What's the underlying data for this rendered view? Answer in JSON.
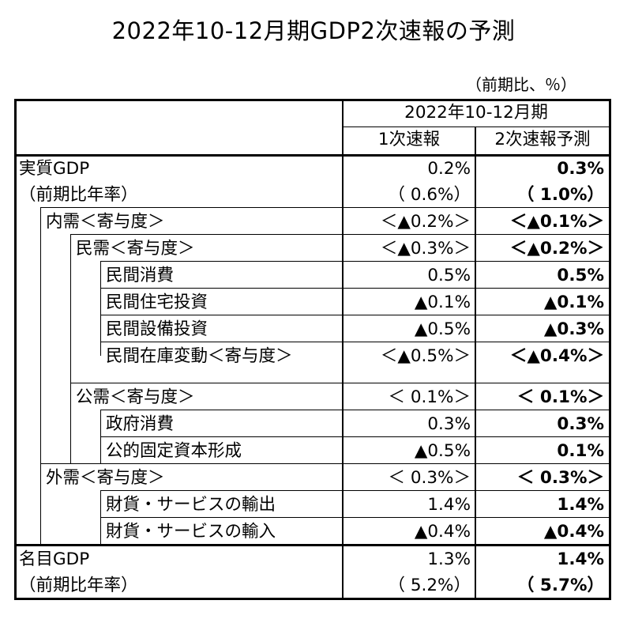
{
  "title": "2022年10-12月期GDP2次速報の予測",
  "unit_note": "（前期比、％）",
  "header": {
    "period": "2022年10-12月期",
    "col_first": "1次速報",
    "col_second": "2次速報予測"
  },
  "rows": [
    {
      "label": "実質GDP",
      "first": "0.2%",
      "second": "0.3%"
    },
    {
      "label": "（前期比年率）",
      "first": "（ 0.6%）",
      "second": "（ 1.0%）"
    },
    {
      "label": "内需＜寄与度＞",
      "first": "＜▲0.2%＞",
      "second": "＜▲0.1%＞"
    },
    {
      "label": "民需＜寄与度＞",
      "first": "＜▲0.3%＞",
      "second": "＜▲0.2%＞"
    },
    {
      "label": "民間消費",
      "first": "0.5%",
      "second": "0.5%"
    },
    {
      "label": "民間住宅投資",
      "first": "▲0.1%",
      "second": "▲0.1%"
    },
    {
      "label": "民間設備投資",
      "first": "▲0.5%",
      "second": "▲0.3%"
    },
    {
      "label": "民間在庫変動＜寄与度＞",
      "first": "＜▲0.5%＞",
      "second": "＜▲0.4%＞"
    },
    {
      "label": "公需＜寄与度＞",
      "first": "＜ 0.1%＞",
      "second": "＜ 0.1%＞"
    },
    {
      "label": "政府消費",
      "first": "0.3%",
      "second": "0.3%"
    },
    {
      "label": "公的固定資本形成",
      "first": "▲0.5%",
      "second": "0.1%"
    },
    {
      "label": "外需＜寄与度＞",
      "first": "＜ 0.3%＞",
      "second": "＜ 0.3%＞"
    },
    {
      "label": "財貨・サービスの輸出",
      "first": "1.4%",
      "second": "1.4%"
    },
    {
      "label": "財貨・サービスの輸入",
      "first": "▲0.4%",
      "second": "▲0.4%"
    },
    {
      "label": "名目GDP",
      "first": "1.3%",
      "second": "1.4%"
    },
    {
      "label": "（前期比年率）",
      "first": "（ 5.2%）",
      "second": "（ 5.7%）"
    }
  ]
}
